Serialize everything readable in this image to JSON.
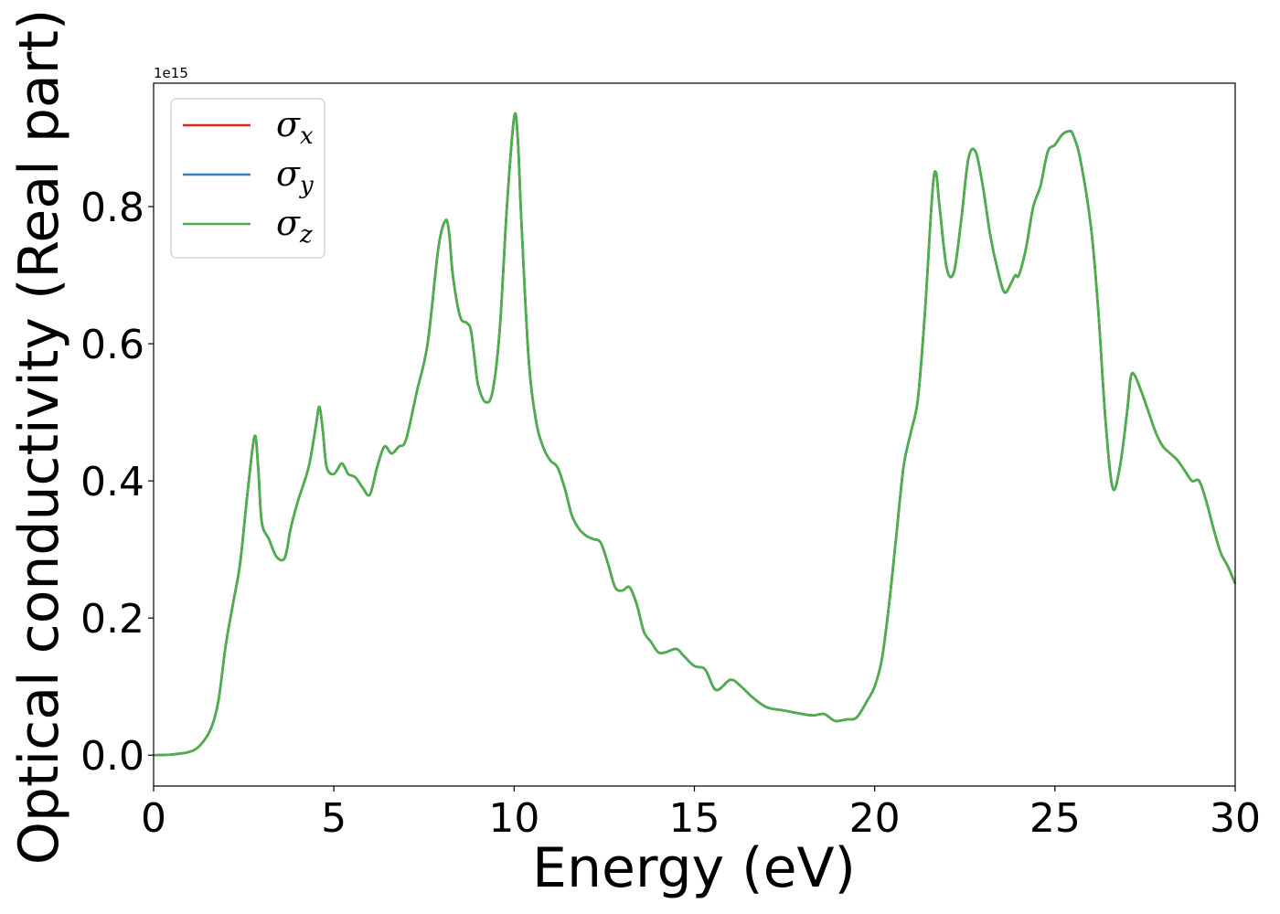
{
  "chart_data": {
    "type": "line",
    "title": "",
    "xlabel": "Energy (eV)",
    "ylabel": "Optical conductivity (Real part)",
    "y_offset_label": "1e15",
    "xlim": [
      0,
      30
    ],
    "ylim": [
      -0.045,
      0.98
    ],
    "xticks": [
      0,
      5,
      10,
      15,
      20,
      25,
      30
    ],
    "xtick_labels": [
      "0",
      "5",
      "10",
      "15",
      "20",
      "25",
      "30"
    ],
    "yticks": [
      0.0,
      0.2,
      0.4,
      0.6,
      0.8
    ],
    "ytick_labels": [
      "0.0",
      "0.2",
      "0.4",
      "0.6",
      "0.8"
    ],
    "grid": false,
    "legend_position": "upper-left",
    "x": [
      0,
      0.5,
      1.0,
      1.3,
      1.6,
      1.8,
      2.0,
      2.2,
      2.4,
      2.6,
      2.8,
      2.9,
      3.0,
      3.2,
      3.4,
      3.6,
      3.7,
      3.8,
      4.0,
      4.3,
      4.5,
      4.6,
      4.7,
      4.8,
      5.0,
      5.2,
      5.3,
      5.4,
      5.6,
      5.8,
      6.0,
      6.2,
      6.4,
      6.6,
      6.8,
      7.0,
      7.3,
      7.6,
      7.9,
      8.1,
      8.2,
      8.3,
      8.5,
      8.7,
      8.8,
      8.9,
      9.0,
      9.2,
      9.4,
      9.6,
      9.8,
      10.0,
      10.1,
      10.2,
      10.4,
      10.6,
      10.8,
      11.0,
      11.2,
      11.4,
      11.6,
      11.8,
      12.0,
      12.2,
      12.4,
      12.6,
      12.8,
      13.0,
      13.2,
      13.4,
      13.6,
      13.8,
      14.0,
      14.2,
      14.5,
      14.7,
      15.0,
      15.3,
      15.6,
      16.0,
      16.3,
      16.6,
      17.0,
      17.5,
      18.0,
      18.3,
      18.6,
      18.9,
      19.2,
      19.5,
      19.8,
      20.0,
      20.2,
      20.4,
      20.6,
      20.8,
      21.0,
      21.2,
      21.4,
      21.6,
      21.7,
      21.8,
      22.0,
      22.2,
      22.4,
      22.6,
      22.8,
      23.0,
      23.2,
      23.4,
      23.6,
      23.8,
      23.9,
      24.0,
      24.2,
      24.4,
      24.6,
      24.8,
      25.0,
      25.2,
      25.4,
      25.5,
      25.7,
      26.0,
      26.2,
      26.4,
      26.6,
      26.8,
      27.0,
      27.1,
      27.2,
      27.4,
      27.6,
      27.8,
      28.0,
      28.2,
      28.4,
      28.6,
      28.8,
      29.0,
      29.2,
      29.4,
      29.6,
      29.8,
      30.0
    ],
    "series": [
      {
        "name": "σx",
        "symbol": "σ",
        "sub": "x",
        "color": "#d62728",
        "values": [
          0.0,
          0.001,
          0.005,
          0.015,
          0.04,
          0.08,
          0.16,
          0.22,
          0.28,
          0.38,
          0.465,
          0.42,
          0.34,
          0.315,
          0.29,
          0.285,
          0.3,
          0.33,
          0.37,
          0.42,
          0.48,
          0.508,
          0.47,
          0.42,
          0.41,
          0.425,
          0.42,
          0.41,
          0.405,
          0.39,
          0.38,
          0.42,
          0.45,
          0.44,
          0.45,
          0.46,
          0.53,
          0.6,
          0.74,
          0.78,
          0.76,
          0.7,
          0.64,
          0.63,
          0.62,
          0.58,
          0.54,
          0.515,
          0.53,
          0.62,
          0.8,
          0.93,
          0.9,
          0.78,
          0.58,
          0.49,
          0.45,
          0.43,
          0.42,
          0.39,
          0.35,
          0.33,
          0.32,
          0.315,
          0.31,
          0.28,
          0.245,
          0.24,
          0.245,
          0.22,
          0.18,
          0.165,
          0.15,
          0.15,
          0.155,
          0.145,
          0.13,
          0.125,
          0.095,
          0.11,
          0.1,
          0.085,
          0.07,
          0.065,
          0.06,
          0.058,
          0.06,
          0.05,
          0.052,
          0.055,
          0.08,
          0.1,
          0.14,
          0.22,
          0.32,
          0.42,
          0.47,
          0.52,
          0.65,
          0.82,
          0.85,
          0.8,
          0.71,
          0.705,
          0.78,
          0.87,
          0.88,
          0.83,
          0.76,
          0.71,
          0.675,
          0.69,
          0.7,
          0.7,
          0.74,
          0.8,
          0.83,
          0.88,
          0.89,
          0.905,
          0.91,
          0.905,
          0.87,
          0.77,
          0.65,
          0.49,
          0.39,
          0.42,
          0.5,
          0.55,
          0.555,
          0.53,
          0.5,
          0.47,
          0.45,
          0.44,
          0.43,
          0.415,
          0.4,
          0.4,
          0.37,
          0.33,
          0.295,
          0.275,
          0.25
        ]
      },
      {
        "name": "σy",
        "symbol": "σ",
        "sub": "y",
        "color": "#377eb8",
        "values": [
          0.0,
          0.001,
          0.005,
          0.015,
          0.04,
          0.08,
          0.16,
          0.22,
          0.28,
          0.38,
          0.465,
          0.42,
          0.34,
          0.315,
          0.29,
          0.285,
          0.3,
          0.33,
          0.37,
          0.42,
          0.48,
          0.508,
          0.47,
          0.42,
          0.41,
          0.425,
          0.42,
          0.41,
          0.405,
          0.39,
          0.38,
          0.42,
          0.45,
          0.44,
          0.45,
          0.46,
          0.53,
          0.6,
          0.74,
          0.78,
          0.76,
          0.7,
          0.64,
          0.63,
          0.62,
          0.58,
          0.54,
          0.515,
          0.53,
          0.62,
          0.8,
          0.93,
          0.9,
          0.78,
          0.58,
          0.49,
          0.45,
          0.43,
          0.42,
          0.39,
          0.35,
          0.33,
          0.32,
          0.315,
          0.31,
          0.28,
          0.245,
          0.24,
          0.245,
          0.22,
          0.18,
          0.165,
          0.15,
          0.15,
          0.155,
          0.145,
          0.13,
          0.125,
          0.095,
          0.11,
          0.1,
          0.085,
          0.07,
          0.065,
          0.06,
          0.058,
          0.06,
          0.05,
          0.052,
          0.055,
          0.08,
          0.1,
          0.14,
          0.22,
          0.32,
          0.42,
          0.47,
          0.52,
          0.65,
          0.82,
          0.85,
          0.8,
          0.71,
          0.705,
          0.78,
          0.87,
          0.88,
          0.83,
          0.76,
          0.71,
          0.675,
          0.69,
          0.7,
          0.7,
          0.74,
          0.8,
          0.83,
          0.88,
          0.89,
          0.905,
          0.91,
          0.905,
          0.87,
          0.77,
          0.65,
          0.49,
          0.39,
          0.42,
          0.5,
          0.55,
          0.555,
          0.53,
          0.5,
          0.47,
          0.45,
          0.44,
          0.43,
          0.415,
          0.4,
          0.4,
          0.37,
          0.33,
          0.295,
          0.275,
          0.25
        ]
      },
      {
        "name": "σz",
        "symbol": "σ",
        "sub": "z",
        "color": "#4daf4a",
        "values": [
          0.0,
          0.001,
          0.005,
          0.015,
          0.04,
          0.08,
          0.16,
          0.22,
          0.28,
          0.38,
          0.465,
          0.42,
          0.34,
          0.315,
          0.29,
          0.285,
          0.3,
          0.33,
          0.37,
          0.42,
          0.48,
          0.508,
          0.47,
          0.42,
          0.41,
          0.425,
          0.42,
          0.41,
          0.405,
          0.39,
          0.38,
          0.42,
          0.45,
          0.44,
          0.45,
          0.46,
          0.53,
          0.6,
          0.74,
          0.78,
          0.76,
          0.7,
          0.64,
          0.63,
          0.62,
          0.58,
          0.54,
          0.515,
          0.53,
          0.62,
          0.8,
          0.93,
          0.9,
          0.78,
          0.58,
          0.49,
          0.45,
          0.43,
          0.42,
          0.39,
          0.35,
          0.33,
          0.32,
          0.315,
          0.31,
          0.28,
          0.245,
          0.24,
          0.245,
          0.22,
          0.18,
          0.165,
          0.15,
          0.15,
          0.155,
          0.145,
          0.13,
          0.125,
          0.095,
          0.11,
          0.1,
          0.085,
          0.07,
          0.065,
          0.06,
          0.058,
          0.06,
          0.05,
          0.052,
          0.055,
          0.08,
          0.1,
          0.14,
          0.22,
          0.32,
          0.42,
          0.47,
          0.52,
          0.65,
          0.82,
          0.85,
          0.8,
          0.71,
          0.705,
          0.78,
          0.87,
          0.88,
          0.83,
          0.76,
          0.71,
          0.675,
          0.69,
          0.7,
          0.7,
          0.74,
          0.8,
          0.83,
          0.88,
          0.89,
          0.905,
          0.91,
          0.905,
          0.87,
          0.77,
          0.65,
          0.49,
          0.39,
          0.42,
          0.5,
          0.55,
          0.555,
          0.53,
          0.5,
          0.47,
          0.45,
          0.44,
          0.43,
          0.415,
          0.4,
          0.4,
          0.37,
          0.33,
          0.295,
          0.275,
          0.25
        ]
      }
    ]
  }
}
